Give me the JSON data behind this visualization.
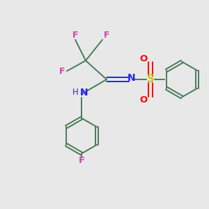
{
  "bg_color": "#e8e8e8",
  "bond_color": "#4a7a5a",
  "N_color": "#2222ff",
  "F_color": "#cc44aa",
  "S_color": "#cccc00",
  "O_color": "#ff0000",
  "fig_width": 3.0,
  "fig_height": 3.0,
  "dpi": 100,
  "xlim": [
    0,
    10
  ],
  "ylim": [
    0,
    10
  ],
  "lw": 1.4,
  "ring_r": 0.85,
  "ring2_r": 0.85
}
